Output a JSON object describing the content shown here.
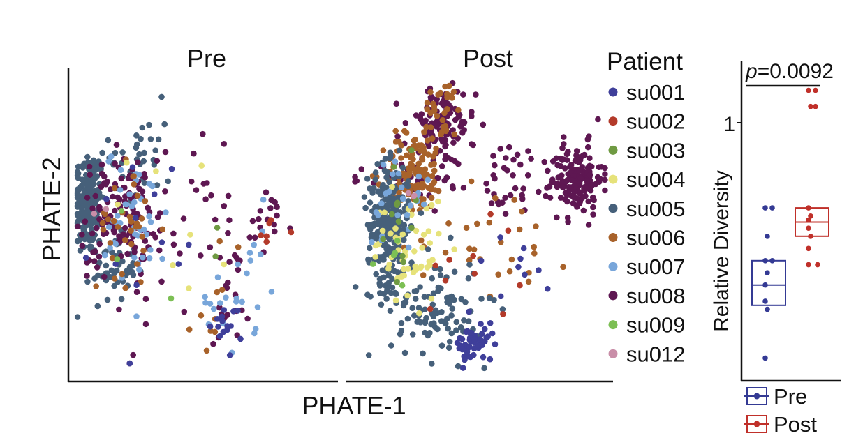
{
  "figure": {
    "panel_titles": [
      "Pre",
      "Post"
    ],
    "shared_xlabel": "PHATE-1",
    "shared_ylabel": "PHATE-2"
  },
  "legend": {
    "title": "Patient",
    "entries": [
      {
        "label": "su001",
        "color": "#3f3f9a"
      },
      {
        "label": "su002",
        "color": "#b33a2a"
      },
      {
        "label": "su003",
        "color": "#6f9a42"
      },
      {
        "label": "su004",
        "color": "#e6e27a"
      },
      {
        "label": "su005",
        "color": "#46607a"
      },
      {
        "label": "su006",
        "color": "#a8622a"
      },
      {
        "label": "su007",
        "color": "#78a6da"
      },
      {
        "label": "su008",
        "color": "#5e1752"
      },
      {
        "label": "su009",
        "color": "#7cbf54"
      },
      {
        "label": "su012",
        "color": "#c98ea8"
      }
    ]
  },
  "box_legend": {
    "entries": [
      {
        "label": "Pre",
        "color": "#343a94"
      },
      {
        "label": "Post",
        "color": "#c0302a"
      }
    ]
  },
  "chart_data": [
    {
      "type": "scatter",
      "title": "Pre",
      "xlabel": "PHATE-1",
      "ylabel": "PHATE-2",
      "xlim": [
        0,
        100
      ],
      "ylim": [
        0,
        100
      ],
      "clusters": [
        {
          "name": "su005",
          "x": 6,
          "y": 60,
          "sx": 3.5,
          "sy": 10,
          "n": 200
        },
        {
          "name": "su005",
          "x": 18,
          "y": 36,
          "sx": 5,
          "sy": 6,
          "n": 55
        },
        {
          "name": "su005",
          "x": 30,
          "y": 78,
          "sx": 7,
          "sy": 11,
          "n": 35
        },
        {
          "name": "su008",
          "x": 20,
          "y": 56,
          "sx": 9,
          "sy": 10,
          "n": 120
        },
        {
          "name": "su008",
          "x": 38,
          "y": 46,
          "sx": 14,
          "sy": 18,
          "n": 40
        },
        {
          "name": "su008",
          "x": 73,
          "y": 33,
          "sx": 7,
          "sy": 14,
          "n": 28
        },
        {
          "name": "su008",
          "x": 88,
          "y": 52,
          "sx": 6,
          "sy": 6,
          "n": 16
        },
        {
          "name": "su007",
          "x": 28,
          "y": 54,
          "sx": 7,
          "sy": 13,
          "n": 45
        },
        {
          "name": "su007",
          "x": 69,
          "y": 18,
          "sx": 7,
          "sy": 7,
          "n": 18
        },
        {
          "name": "su007",
          "x": 82,
          "y": 45,
          "sx": 6,
          "sy": 8,
          "n": 8
        },
        {
          "name": "su006",
          "x": 22,
          "y": 52,
          "sx": 6,
          "sy": 12,
          "n": 35
        },
        {
          "name": "su006",
          "x": 66,
          "y": 26,
          "sx": 6,
          "sy": 13,
          "n": 10
        },
        {
          "name": "su001",
          "x": 70,
          "y": 15,
          "sx": 4,
          "sy": 5,
          "n": 15
        },
        {
          "name": "su001",
          "x": 30,
          "y": 52,
          "sx": 10,
          "sy": 14,
          "n": 12
        },
        {
          "name": "su002",
          "x": 88,
          "y": 50,
          "sx": 4,
          "sy": 4,
          "n": 6
        },
        {
          "name": "su004",
          "x": 55,
          "y": 50,
          "sx": 15,
          "sy": 15,
          "n": 8
        },
        {
          "name": "su003",
          "x": 60,
          "y": 48,
          "sx": 4,
          "sy": 4,
          "n": 2
        },
        {
          "name": "su009",
          "x": 40,
          "y": 42,
          "sx": 10,
          "sy": 10,
          "n": 3
        },
        {
          "name": "su012",
          "x": 12,
          "y": 58,
          "sx": 3,
          "sy": 3,
          "n": 2
        }
      ]
    },
    {
      "type": "scatter",
      "title": "Post",
      "xlabel": "PHATE-1",
      "ylabel": "PHATE-2",
      "xlim": [
        0,
        100
      ],
      "ylim": [
        0,
        100
      ],
      "clusters": [
        {
          "name": "su008",
          "x": 34,
          "y": 84,
          "sx": 7,
          "sy": 7,
          "n": 110
        },
        {
          "name": "su008",
          "x": 88,
          "y": 66,
          "sx": 5,
          "sy": 6,
          "n": 150
        },
        {
          "name": "su008",
          "x": 58,
          "y": 66,
          "sx": 14,
          "sy": 7,
          "n": 45
        },
        {
          "name": "su008",
          "x": 20,
          "y": 66,
          "sx": 7,
          "sy": 3,
          "n": 30
        },
        {
          "name": "su006",
          "x": 24,
          "y": 68,
          "sx": 6,
          "sy": 7,
          "n": 110
        },
        {
          "name": "su006",
          "x": 35,
          "y": 88,
          "sx": 4,
          "sy": 6,
          "n": 35
        },
        {
          "name": "su006",
          "x": 55,
          "y": 48,
          "sx": 17,
          "sy": 11,
          "n": 30
        },
        {
          "name": "su005",
          "x": 14,
          "y": 50,
          "sx": 4,
          "sy": 10,
          "n": 260
        },
        {
          "name": "su005",
          "x": 33,
          "y": 22,
          "sx": 9,
          "sy": 9,
          "n": 110
        },
        {
          "name": "su001",
          "x": 48,
          "y": 9,
          "sx": 4,
          "sy": 3,
          "n": 60
        },
        {
          "name": "su001",
          "x": 60,
          "y": 38,
          "sx": 9,
          "sy": 8,
          "n": 10
        },
        {
          "name": "su004",
          "x": 22,
          "y": 42,
          "sx": 7,
          "sy": 9,
          "n": 55
        },
        {
          "name": "su007",
          "x": 18,
          "y": 58,
          "sx": 6,
          "sy": 8,
          "n": 25
        },
        {
          "name": "su002",
          "x": 40,
          "y": 40,
          "sx": 12,
          "sy": 15,
          "n": 10
        },
        {
          "name": "su003",
          "x": 20,
          "y": 52,
          "sx": 5,
          "sy": 10,
          "n": 12
        },
        {
          "name": "su009",
          "x": 17,
          "y": 38,
          "sx": 3,
          "sy": 5,
          "n": 5
        },
        {
          "name": "su012",
          "x": 22,
          "y": 60,
          "sx": 4,
          "sy": 4,
          "n": 3
        }
      ]
    },
    {
      "type": "box",
      "ylabel": "Relative Diversity",
      "ytick_labels": [
        {
          "value": 1,
          "label": "1"
        }
      ],
      "ylim": [
        0.4,
        1.1
      ],
      "annotation": {
        "text_prefix": "p",
        "text_value": "=0.0092"
      },
      "groups": [
        {
          "name": "Pre",
          "q1": 0.55,
          "median": 0.6,
          "q3": 0.66,
          "points": [
            0.79,
            0.79,
            0.72,
            0.66,
            0.66,
            0.63,
            0.6,
            0.56,
            0.54,
            0.42
          ]
        },
        {
          "name": "Post",
          "q1": 0.72,
          "median": 0.755,
          "q3": 0.79,
          "points": [
            1.08,
            1.08,
            1.04,
            1.04,
            0.79,
            0.77,
            0.76,
            0.74,
            0.72,
            0.69,
            0.65,
            0.65
          ]
        }
      ]
    }
  ]
}
